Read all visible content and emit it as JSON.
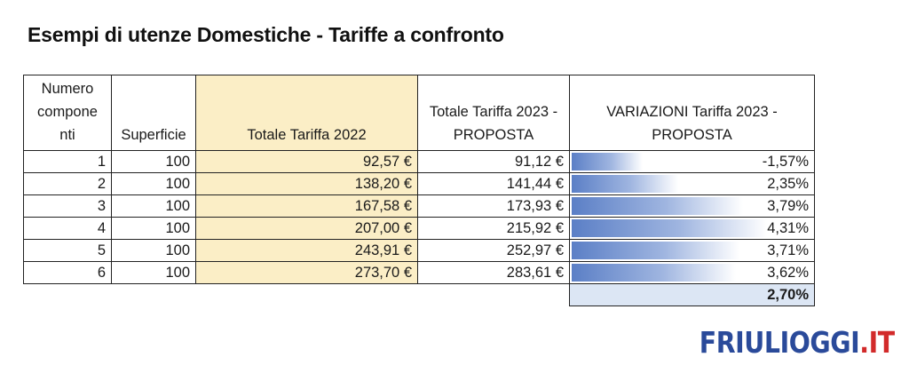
{
  "title": "Esempi di utenze Domestiche - Tariffe a confronto",
  "headers": {
    "col1": "Numero compone nti",
    "col2": "Superficie",
    "col3": "Totale Tariffa 2022",
    "col4": "Totale Tariffa 2023 -PROPOSTA",
    "col5": "VARIAZIONI Tariffa 2023 - PROPOSTA"
  },
  "rows": [
    {
      "componenti": "1",
      "superficie": "100",
      "tariffa_2022": "92,57 €",
      "tariffa_2023": "91,12 €",
      "variazione": "-1,57%",
      "variazione_value": -1.57
    },
    {
      "componenti": "2",
      "superficie": "100",
      "tariffa_2022": "138,20 €",
      "tariffa_2023": "141,44 €",
      "variazione": "2,35%",
      "variazione_value": 2.35
    },
    {
      "componenti": "3",
      "superficie": "100",
      "tariffa_2022": "167,58 €",
      "tariffa_2023": "173,93 €",
      "variazione": "3,79%",
      "variazione_value": 3.79
    },
    {
      "componenti": "4",
      "superficie": "100",
      "tariffa_2022": "207,00 €",
      "tariffa_2023": "215,92 €",
      "variazione": "4,31%",
      "variazione_value": 4.31
    },
    {
      "componenti": "5",
      "superficie": "100",
      "tariffa_2022": "243,91 €",
      "tariffa_2023": "252,97 €",
      "variazione": "3,71%",
      "variazione_value": 3.71
    },
    {
      "componenti": "6",
      "superficie": "100",
      "tariffa_2022": "273,70 €",
      "tariffa_2023": "283,61 €",
      "variazione": "3,62%",
      "variazione_value": 3.62
    }
  ],
  "total_variazione": "2,70%",
  "logo": {
    "main": "FRIULIOGGI",
    "suffix": ".IT"
  },
  "colors": {
    "highlight_column": "#fbeec6",
    "data_bar": "#5b7fc6",
    "total_cell": "#dce6f4",
    "logo_blue": "#2a4a9a",
    "logo_red": "#d22a2a"
  }
}
